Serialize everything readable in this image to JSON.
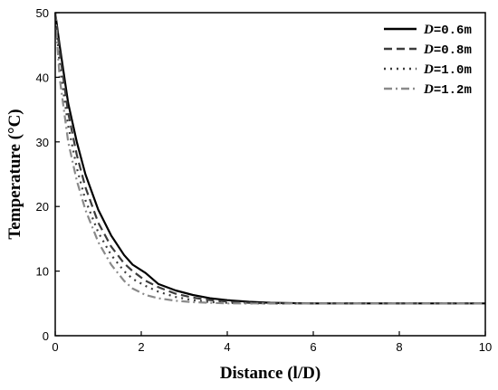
{
  "chart_data": {
    "type": "line",
    "xlabel": "Distance (l/D)",
    "ylabel": "Temperature (°C)",
    "xlim": [
      0,
      10
    ],
    "ylim": [
      0,
      50
    ],
    "xticks": [
      "0",
      "2",
      "4",
      "6",
      "8",
      "10"
    ],
    "yticks": [
      "0",
      "10",
      "20",
      "30",
      "40",
      "50"
    ],
    "grid": false,
    "legend_position": "top-right",
    "series": [
      {
        "name_var": "D",
        "name_value": "=0.6m",
        "color": "#000000",
        "style": "solid",
        "x": [
          0,
          0.1,
          0.3,
          0.5,
          0.7,
          1.0,
          1.3,
          1.6,
          1.8,
          2.1,
          2.4,
          2.8,
          3.2,
          3.6,
          4.0,
          4.5,
          5.0,
          6.0,
          7.0,
          8.0,
          10.0
        ],
        "y": [
          50,
          45,
          36,
          30,
          25,
          19.5,
          15.5,
          12.5,
          11,
          9.7,
          8,
          7,
          6.3,
          5.8,
          5.5,
          5.25,
          5.1,
          5,
          5,
          5,
          5
        ]
      },
      {
        "name_var": "D",
        "name_value": "=0.8m",
        "color": "#3c3c3c",
        "style": "dashed",
        "x": [
          0,
          0.1,
          0.3,
          0.5,
          0.7,
          1.0,
          1.3,
          1.6,
          1.8,
          2.1,
          2.4,
          2.8,
          3.2,
          3.6,
          4.0,
          4.5,
          5.0,
          6.0,
          7.0,
          8.0,
          10.0
        ],
        "y": [
          50,
          44,
          34.5,
          28,
          23,
          17.5,
          13.8,
          11.2,
          10,
          8.5,
          7.5,
          6.5,
          5.9,
          5.5,
          5.3,
          5.1,
          5,
          5,
          5,
          5,
          5
        ]
      },
      {
        "name_var": "D",
        "name_value": "=1.0m",
        "color": "#3c3c3c",
        "style": "dotted",
        "x": [
          0,
          0.1,
          0.3,
          0.5,
          0.7,
          1.0,
          1.3,
          1.6,
          1.8,
          2.1,
          2.4,
          2.8,
          3.2,
          3.6,
          4.0,
          4.5,
          5.0,
          6.0,
          7.0,
          8.0,
          10.0
        ],
        "y": [
          50,
          42,
          32.5,
          26,
          21,
          16,
          12.5,
          10,
          8.8,
          7.7,
          6.8,
          6,
          5.5,
          5.2,
          5.1,
          5,
          5,
          5,
          5,
          5,
          5
        ]
      },
      {
        "name_var": "D",
        "name_value": "=1.2m",
        "color": "#8a8a8a",
        "style": "dashdot",
        "x": [
          0,
          0.1,
          0.3,
          0.5,
          0.7,
          1.0,
          1.3,
          1.6,
          1.8,
          2.1,
          2.4,
          2.8,
          3.2,
          3.6,
          4.0,
          4.5,
          5.0,
          6.0,
          7.0,
          8.0,
          10.0
        ],
        "y": [
          50,
          40,
          30,
          24,
          19.5,
          14.5,
          11,
          8.5,
          7.3,
          6.3,
          5.8,
          5.4,
          5.2,
          5.1,
          5,
          5,
          5,
          5,
          5,
          5,
          5
        ]
      }
    ]
  }
}
